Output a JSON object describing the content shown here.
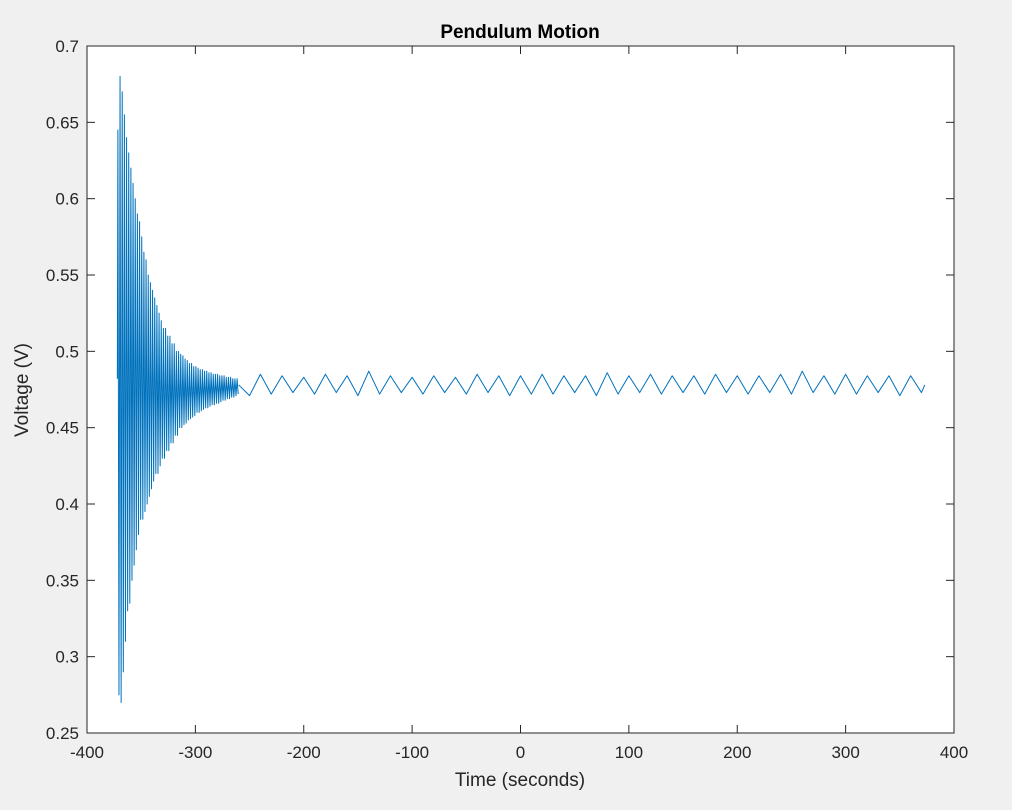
{
  "chart_data": {
    "type": "line",
    "title": "Pendulum Motion",
    "xlabel": "Time (seconds)",
    "ylabel": "Voltage (V)",
    "xlim": [
      -400,
      400
    ],
    "ylim": [
      0.25,
      0.7
    ],
    "xticks": [
      "-400",
      "-300",
      "-200",
      "-100",
      "0",
      "100",
      "200",
      "300",
      "400"
    ],
    "yticks": [
      "0.25",
      "0.3",
      "0.35",
      "0.4",
      "0.45",
      "0.5",
      "0.55",
      "0.6",
      "0.65",
      "0.7"
    ],
    "grid": false,
    "line_color": "#0072bd",
    "series": [
      {
        "x": [
          -372,
          -371.5,
          -370.5,
          -369.5,
          -368.5,
          -367.5,
          -366.5,
          -365.5,
          -364.5,
          -363.5,
          -362.5,
          -361.5,
          -360.5,
          -359.5,
          -358.5,
          -357.5,
          -356.5,
          -355.5,
          -354.5,
          -353.5,
          -352.5,
          -351.5,
          -350.5,
          -349.5,
          -348.5,
          -347.5,
          -346.5,
          -345.5,
          -344.5,
          -343.5,
          -342.5,
          -341.5,
          -340.5,
          -339.5,
          -338.5,
          -337.5,
          -336.5,
          -335.5,
          -334.5,
          -333.5,
          -332.5,
          -331.5,
          -330.5,
          -329.5,
          -328.5,
          -327.5,
          -326.5,
          -325.5,
          -324.5,
          -323.5,
          -322.5,
          -321.5,
          -320.5,
          -319.5,
          -318.5,
          -317.5,
          -316.5,
          -315.5,
          -314.5,
          -313.5,
          -312.5,
          -311.5,
          -310.5,
          -309.5,
          -308.5,
          -307.5,
          -306.5,
          -305.5,
          -304.5,
          -303.5,
          -302.5,
          -301.5,
          -300.5,
          -299.5,
          -298.5,
          -297.5,
          -296.5,
          -295.5,
          -294.5,
          -293.5,
          -292.5,
          -291.5,
          -290.5,
          -289.5,
          -288.5,
          -287.5,
          -286.5,
          -285.5,
          -284.5,
          -283.5,
          -282.5,
          -281.5,
          -280.5,
          -279.5,
          -278.5,
          -277.5,
          -276.5,
          -275.5,
          -274.5,
          -273.5,
          -272.5,
          -271.5,
          -270.5,
          -269.5,
          -268.5,
          -267.5,
          -266.5,
          -265.5,
          -264.5,
          -263.5,
          -262.5,
          -261.5,
          -260.5
        ],
        "y": [
          0.482,
          0.645,
          0.275,
          0.68,
          0.27,
          0.67,
          0.29,
          0.655,
          0.31,
          0.64,
          0.33,
          0.63,
          0.335,
          0.62,
          0.35,
          0.61,
          0.36,
          0.6,
          0.37,
          0.59,
          0.38,
          0.585,
          0.39,
          0.575,
          0.39,
          0.565,
          0.395,
          0.56,
          0.4,
          0.55,
          0.405,
          0.545,
          0.41,
          0.54,
          0.415,
          0.535,
          0.42,
          0.53,
          0.42,
          0.525,
          0.425,
          0.52,
          0.43,
          0.515,
          0.43,
          0.515,
          0.435,
          0.51,
          0.435,
          0.51,
          0.44,
          0.505,
          0.44,
          0.505,
          0.445,
          0.5,
          0.445,
          0.5,
          0.45,
          0.498,
          0.45,
          0.497,
          0.452,
          0.495,
          0.453,
          0.494,
          0.455,
          0.492,
          0.456,
          0.492,
          0.457,
          0.49,
          0.458,
          0.49,
          0.46,
          0.489,
          0.46,
          0.488,
          0.461,
          0.488,
          0.462,
          0.487,
          0.463,
          0.487,
          0.463,
          0.486,
          0.464,
          0.486,
          0.465,
          0.485,
          0.465,
          0.485,
          0.466,
          0.485,
          0.466,
          0.484,
          0.467,
          0.484,
          0.468,
          0.484,
          0.468,
          0.483,
          0.469,
          0.483,
          0.469,
          0.483,
          0.47,
          0.482,
          0.47,
          0.482,
          0.471,
          0.482,
          0.472
        ]
      },
      {
        "x": [
          -260,
          -250,
          -240,
          -230,
          -220,
          -210,
          -200,
          -190,
          -180,
          -170,
          -160,
          -150,
          -140,
          -130,
          -120,
          -110,
          -100,
          -90,
          -80,
          -70,
          -60,
          -50,
          -40,
          -30,
          -20,
          -10,
          0,
          10,
          20,
          30,
          40,
          50,
          60,
          70,
          80,
          90,
          100,
          110,
          120,
          130,
          140,
          150,
          160,
          170,
          180,
          190,
          200,
          210,
          220,
          230,
          240,
          250,
          260,
          270,
          280,
          290,
          300,
          310,
          320,
          330,
          340,
          350,
          360,
          370,
          373
        ],
        "y": [
          0.478,
          0.471,
          0.485,
          0.472,
          0.484,
          0.473,
          0.483,
          0.472,
          0.485,
          0.473,
          0.484,
          0.471,
          0.487,
          0.472,
          0.484,
          0.473,
          0.483,
          0.472,
          0.484,
          0.473,
          0.483,
          0.472,
          0.485,
          0.473,
          0.484,
          0.471,
          0.484,
          0.472,
          0.485,
          0.472,
          0.484,
          0.473,
          0.484,
          0.471,
          0.486,
          0.472,
          0.484,
          0.473,
          0.485,
          0.472,
          0.484,
          0.473,
          0.484,
          0.472,
          0.485,
          0.473,
          0.484,
          0.472,
          0.484,
          0.473,
          0.485,
          0.472,
          0.487,
          0.473,
          0.484,
          0.472,
          0.485,
          0.472,
          0.484,
          0.473,
          0.484,
          0.471,
          0.484,
          0.473,
          0.478
        ]
      }
    ]
  }
}
